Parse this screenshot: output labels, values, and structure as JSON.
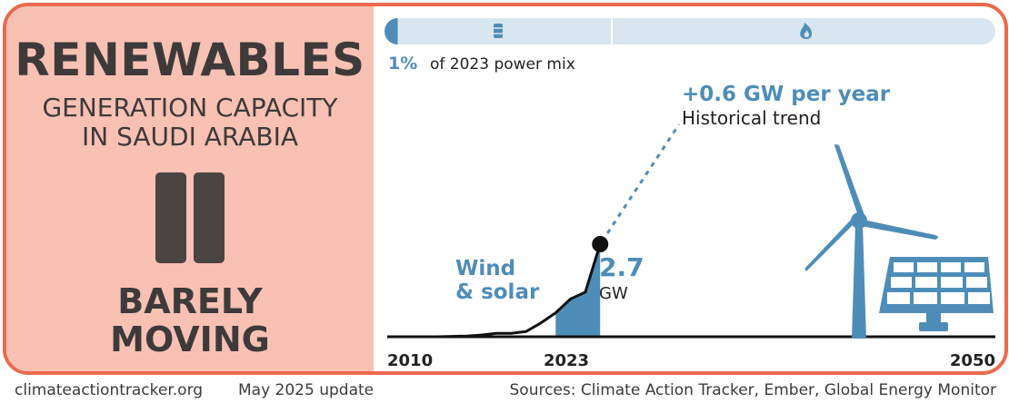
{
  "left_panel": {
    "title": "RENEWABLES",
    "subtitle_line1": "GENERATION CAPACITY",
    "subtitle_line2": "IN SAUDI ARABIA",
    "status_line1": "BARELY",
    "status_line2": "MOVING",
    "status_icon": "pause-icon"
  },
  "power_mix": {
    "share_value": "1%",
    "share_text": "of 2023 power mix",
    "share_fraction": 0.01,
    "icons": [
      "oil-barrel-icon",
      "gas-flame-icon"
    ]
  },
  "annotations": {
    "trend_value": "+0.6 GW per year",
    "trend_label": "Historical trend",
    "series_label_line1": "Wind",
    "series_label_line2": "& solar",
    "end_value": "2.7",
    "end_unit": "GW"
  },
  "chart_data": {
    "type": "area",
    "series": [
      {
        "name": "Wind & solar",
        "x": [
          2010,
          2011,
          2012,
          2013,
          2014,
          2015,
          2016,
          2017,
          2018,
          2019,
          2020,
          2021,
          2022,
          2023
        ],
        "values": [
          0.0,
          0.0,
          0.0,
          0.01,
          0.02,
          0.05,
          0.1,
          0.1,
          0.15,
          0.4,
          0.7,
          1.1,
          1.3,
          2.7
        ]
      }
    ],
    "trend": {
      "from_x": 2023,
      "from_y": 2.7,
      "slope": 0.6,
      "label": "+0.6 GW per year"
    },
    "xlim": [
      2010,
      2050
    ],
    "ylim": [
      0,
      2.7
    ],
    "xticks": [
      "2010",
      "2023",
      "2050"
    ],
    "grid": false,
    "colors": {
      "line": "#111111",
      "fill": "#4e8db8",
      "accent": "#4e8db8",
      "trend": "#4e8db8"
    }
  },
  "footer": {
    "website": "climateactiontracker.org",
    "update": "May 2025 update",
    "sources": "Sources: Climate Action Tracker, Ember, Global Energy Monitor"
  },
  "colors": {
    "frame": "#ec6a4c",
    "left_bg": "#f8c1b4",
    "text_dark": "#3e3a3a",
    "blue": "#4e8db8",
    "pill_bg": "#d9e6ef"
  }
}
